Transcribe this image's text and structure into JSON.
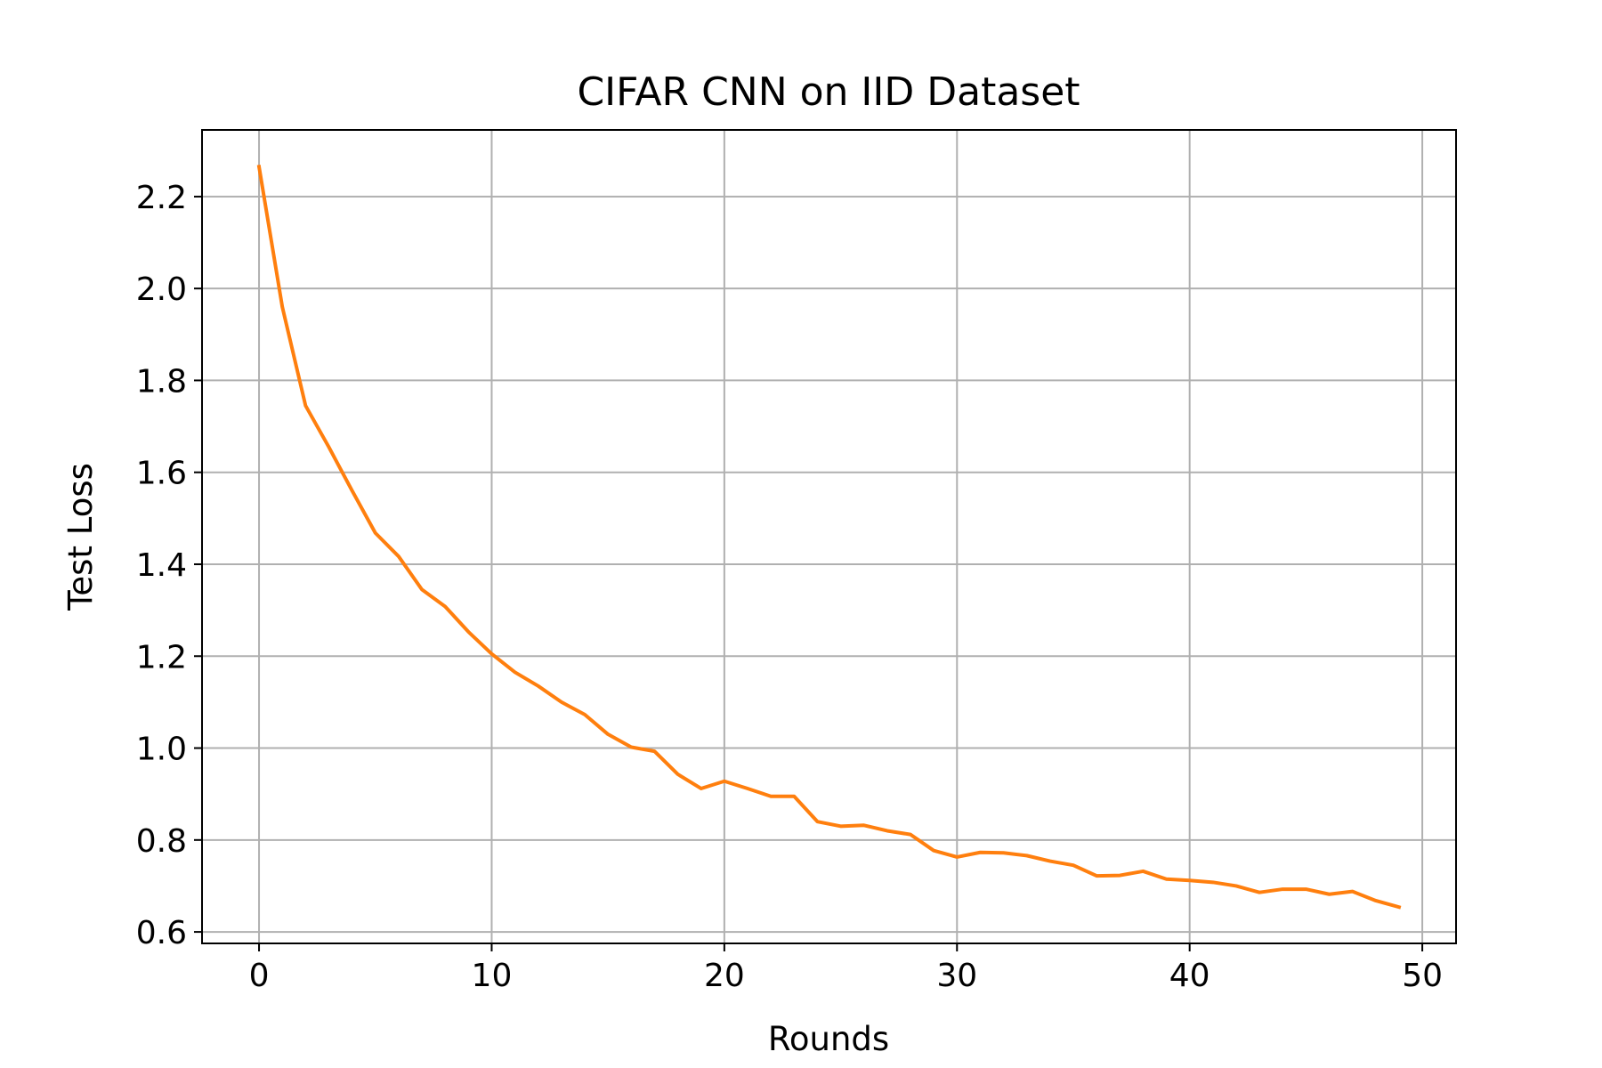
{
  "chart_data": {
    "type": "line",
    "title": "CIFAR CNN on IID Dataset",
    "xlabel": "Rounds",
    "ylabel": "Test Loss",
    "xlim": [
      -2.45,
      51.45
    ],
    "ylim": [
      0.575,
      2.345
    ],
    "xticks": [
      0,
      10,
      20,
      30,
      40,
      50
    ],
    "xtick_labels": [
      "0",
      "10",
      "20",
      "30",
      "40",
      "50"
    ],
    "yticks": [
      0.6,
      0.8,
      1.0,
      1.2,
      1.4,
      1.6,
      1.8,
      2.0,
      2.2
    ],
    "ytick_labels": [
      "0.6",
      "0.8",
      "1.0",
      "1.2",
      "1.4",
      "1.6",
      "1.8",
      "2.0",
      "2.2"
    ],
    "grid": true,
    "series": [
      {
        "name": "Test Loss",
        "color": "#ff7f0e",
        "x": [
          0,
          1,
          2,
          3,
          4,
          5,
          6,
          7,
          8,
          9,
          10,
          11,
          12,
          13,
          14,
          15,
          16,
          17,
          18,
          19,
          20,
          21,
          22,
          23,
          24,
          25,
          26,
          27,
          28,
          29,
          30,
          31,
          32,
          33,
          34,
          35,
          36,
          37,
          38,
          39,
          40,
          41,
          42,
          43,
          44,
          45,
          46,
          47,
          48,
          49
        ],
        "values": [
          2.265,
          1.96,
          1.745,
          1.655,
          1.56,
          1.468,
          1.417,
          1.345,
          1.308,
          1.253,
          1.205,
          1.165,
          1.135,
          1.1,
          1.073,
          1.03,
          1.002,
          0.993,
          0.943,
          0.912,
          0.928,
          0.912,
          0.895,
          0.895,
          0.84,
          0.83,
          0.832,
          0.82,
          0.812,
          0.777,
          0.763,
          0.773,
          0.772,
          0.766,
          0.754,
          0.745,
          0.722,
          0.723,
          0.732,
          0.715,
          0.712,
          0.708,
          0.7,
          0.686,
          0.693,
          0.693,
          0.682,
          0.688,
          0.668,
          0.654
        ]
      }
    ]
  }
}
